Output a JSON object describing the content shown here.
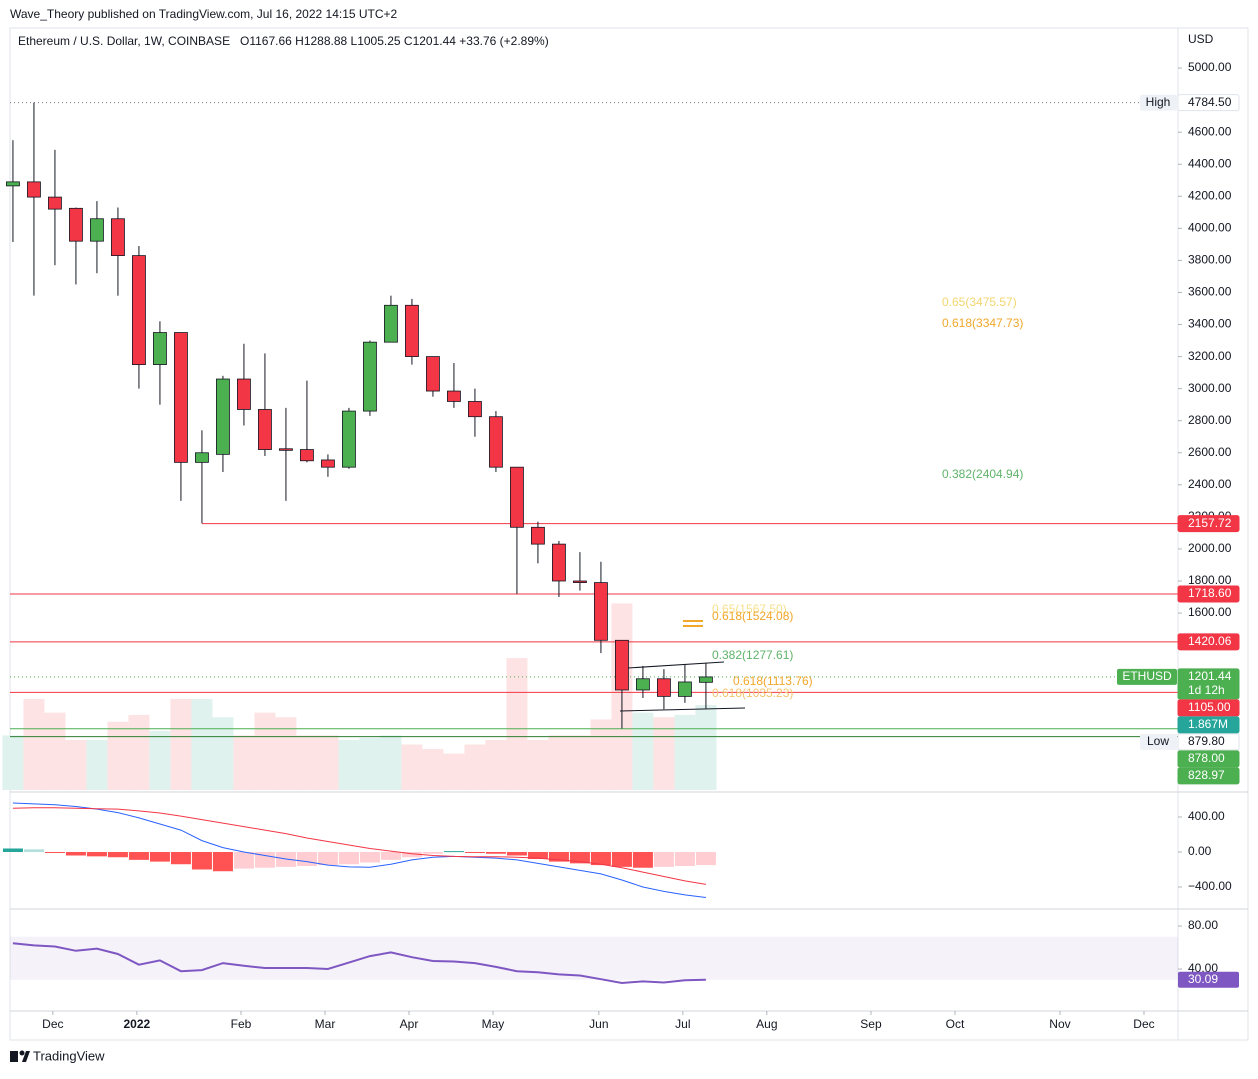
{
  "header": {
    "publisher": "Wave_Theory published on TradingView.com, Jul 16, 2022 14:15 UTC+2",
    "symbol": "Ethereum / U.S. Dollar, 1W, COINBASE",
    "ohlc": "O1167.66  H1288.88  L1005.25  C1201.44  +33.76 (+2.89%)"
  },
  "chart_data": {
    "type": "candlestick",
    "unit": "USD",
    "up_color": "#4caf50",
    "down_color": "#f23645",
    "open": [
      4265,
      4290,
      4195,
      4125,
      3920,
      4060,
      3830,
      3150,
      3350,
      2540,
      2590,
      3060,
      2870,
      2625,
      2620,
      2555,
      2510,
      2860,
      3290,
      3520,
      3200,
      2985,
      2920,
      2825,
      2510,
      2135,
      2030,
      1800,
      1790,
      1430,
      1120,
      1190,
      1080,
      1167.66
    ],
    "high": [
      4550,
      4784.5,
      4490,
      4130,
      4170,
      4130,
      3890,
      3420,
      3350,
      2740,
      3080,
      3280,
      3220,
      2880,
      3050,
      2590,
      2880,
      3300,
      3580,
      3560,
      3200,
      3160,
      3000,
      2860,
      2510,
      2170,
      2050,
      1980,
      1920,
      1430,
      1270,
      1250,
      1280,
      1288.88
    ],
    "low": [
      3915,
      3580,
      3770,
      3650,
      3720,
      3580,
      3000,
      2900,
      2300,
      2160,
      2480,
      2770,
      2580,
      2300,
      2540,
      2450,
      2500,
      2830,
      3290,
      3150,
      2950,
      2880,
      2700,
      2480,
      1720,
      1910,
      1700,
      1740,
      1350,
      880,
      1070,
      1000,
      1040,
      1005.25
    ],
    "close": [
      4290,
      4195,
      4120,
      3920,
      4060,
      3830,
      3150,
      3350,
      2540,
      2600,
      3060,
      2870,
      2620,
      2615,
      2550,
      2510,
      2860,
      3290,
      3520,
      3200,
      2985,
      2920,
      2825,
      2510,
      2135,
      2030,
      1800,
      1790,
      1430,
      1120,
      1190,
      1080,
      1170,
      1201.44
    ],
    "volume": [
      1.2,
      2.0,
      1.7,
      1.1,
      1.1,
      1.5,
      1.65,
      1.3,
      2.0,
      2.0,
      1.6,
      1.2,
      1.7,
      1.6,
      1.2,
      1.2,
      1.1,
      1.15,
      1.2,
      1.0,
      0.9,
      0.8,
      1.0,
      1.1,
      2.9,
      1.1,
      1.2,
      1.2,
      1.55,
      4.1,
      1.7,
      1.6,
      1.65,
      1.867
    ],
    "volume_label": "1.867M",
    "volume_up_color": "#dff2ee",
    "volume_down_color": "#fde3e4",
    "ylim": [
      496,
      5250
    ],
    "yticks": [
      {
        "value": 1600,
        "label": "1600.00"
      },
      {
        "value": 1800,
        "label": "1800.00"
      },
      {
        "value": 2000,
        "label": "2000.00"
      },
      {
        "value": 2200,
        "label": "2200.00"
      },
      {
        "value": 2400,
        "label": "2400.00"
      },
      {
        "value": 2600,
        "label": "2600.00"
      },
      {
        "value": 2800,
        "label": "2800.00"
      },
      {
        "value": 3000,
        "label": "3000.00"
      },
      {
        "value": 3200,
        "label": "3200.00"
      },
      {
        "value": 3400,
        "label": "3400.00"
      },
      {
        "value": 3600,
        "label": "3600.00"
      },
      {
        "value": 3800,
        "label": "3800.00"
      },
      {
        "value": 4000,
        "label": "4000.00"
      },
      {
        "value": 4200,
        "label": "4200.00"
      },
      {
        "value": 4400,
        "label": "4400.00"
      },
      {
        "value": 4600,
        "label": "4600.00"
      },
      {
        "value": 5000,
        "label": "5000.00"
      }
    ],
    "xlim": [
      -0.14,
      55.48
    ],
    "xticks": [
      {
        "value": 1.9,
        "label": "Dec"
      },
      {
        "value": 5.9,
        "label": "2022"
      },
      {
        "value": 10.86,
        "label": "Feb"
      },
      {
        "value": 14.86,
        "label": "Mar"
      },
      {
        "value": 18.86,
        "label": "Apr"
      },
      {
        "value": 22.86,
        "label": "May"
      },
      {
        "value": 27.9,
        "label": "Jun"
      },
      {
        "value": 31.9,
        "label": "Jul"
      },
      {
        "value": 35.9,
        "label": "Aug"
      },
      {
        "value": 40.86,
        "label": "Sep"
      },
      {
        "value": 44.86,
        "label": "Oct"
      },
      {
        "value": 49.86,
        "label": "Nov"
      },
      {
        "value": 53.86,
        "label": "Dec"
      }
    ],
    "symbol_tag": "ETHUSD",
    "countdown": "1d 12h",
    "levels": [
      {
        "value": 4784.5,
        "label": "4784.50",
        "name": "High",
        "color": "#787b86",
        "tag_color": "#ffffff",
        "text_color": "#131722",
        "line": "dotted"
      },
      {
        "value": 2157.72,
        "label": "2157.72",
        "color": "#f23645",
        "tag_color": "#f23645",
        "text_color": "#ffffff",
        "line": "solid",
        "from": 9
      },
      {
        "value": 1718.6,
        "label": "1718.60",
        "color": "#f23645",
        "tag_color": "#f23645",
        "text_color": "#ffffff",
        "line": "solid"
      },
      {
        "value": 1420.06,
        "label": "1420.06",
        "color": "#f23645",
        "tag_color": "#f23645",
        "text_color": "#ffffff",
        "line": "solid"
      },
      {
        "value": 1105,
        "label": "1105.00",
        "color": "#f23645",
        "tag_color": "#f23645",
        "text_color": "#ffffff",
        "line": "solid"
      },
      {
        "value": 879.8,
        "label": "879.80",
        "name": "Low",
        "color": "#787b86",
        "tag_color": "#ffffff",
        "text_color": "#131722",
        "line": "none"
      },
      {
        "value": 878,
        "label": "878.00",
        "color": "#4caf50",
        "tag_color": "#4caf50",
        "text_color": "#ffffff",
        "line": "solid"
      },
      {
        "value": 828.97,
        "label": "828.97",
        "color": "#2e7d32",
        "tag_color": "#4caf50",
        "text_color": "#ffffff",
        "line": "solid"
      }
    ],
    "annotations": [
      {
        "text": "0.65(3475.57)",
        "color": "#f3d66f"
      },
      {
        "text": "0.618(3347.73)",
        "color": "#f0a72a"
      },
      {
        "text": "0.382(2404.94)",
        "color": "#5fb36a"
      },
      {
        "text": "0.65(1567.50)",
        "color": "#f6e08c"
      },
      {
        "text": "0.618(1524.08)",
        "color": "#f0a72a"
      },
      {
        "text": "0.382(1277.61)",
        "color": "#5fb36a"
      },
      {
        "text": "0.618(1113.76)",
        "color": "#f0a72a"
      },
      {
        "text": "0.618(1035.23)",
        "color": "#f3c46f"
      }
    ],
    "macd": {
      "ylim": [
        -640,
        674
      ],
      "yticks": [
        {
          "value": 400,
          "label": "400.00"
        },
        {
          "value": 0,
          "label": "0.00"
        },
        {
          "value": -400,
          "label": "−400.00"
        }
      ],
      "macd_color": "#2962ff",
      "signal_color": "#f23645",
      "macd": [
        560,
        550,
        540,
        520,
        490,
        450,
        390,
        320,
        250,
        130,
        50,
        0,
        -40,
        -80,
        -110,
        -150,
        -170,
        -175,
        -140,
        -90,
        -60,
        -50,
        -60,
        -70,
        -90,
        -130,
        -170,
        -210,
        -250,
        -320,
        -400,
        -450,
        -490,
        -520
      ],
      "signal": [
        500,
        505,
        505,
        500,
        495,
        490,
        470,
        445,
        410,
        370,
        330,
        290,
        250,
        210,
        160,
        120,
        80,
        40,
        10,
        -20,
        -40,
        -50,
        -55,
        -55,
        -60,
        -70,
        -90,
        -110,
        -140,
        -180,
        -230,
        -280,
        -330,
        -370
      ],
      "hist": [
        40,
        30,
        -10,
        -40,
        -50,
        -60,
        -90,
        -110,
        -140,
        -200,
        -220,
        -190,
        -180,
        -170,
        -160,
        -150,
        -140,
        -120,
        -90,
        -60,
        -20,
        10,
        -10,
        -20,
        -40,
        -80,
        -110,
        -130,
        -150,
        -170,
        -180,
        -170,
        -160,
        -150
      ],
      "hist_colors": {
        "up_strong": "#26a69a",
        "up_weak": "#b2dfdb",
        "down_strong": "#ff5252",
        "down_weak": "#ffcdd2"
      }
    },
    "rsi": {
      "ylim": [
        1.9,
        94.9
      ],
      "yticks": [
        {
          "value": 80,
          "label": "80.00"
        },
        {
          "value": 40,
          "label": "40.00"
        }
      ],
      "band": [
        30,
        70
      ],
      "color": "#7e57c2",
      "values": [
        64,
        62,
        61,
        57,
        59,
        54,
        44,
        48,
        38,
        39,
        45.5,
        43,
        41,
        41,
        41,
        40,
        46,
        52,
        55.5,
        51,
        47.5,
        47,
        45.5,
        42,
        38,
        37,
        35,
        34,
        30.5,
        27,
        28.5,
        27.5,
        29.5,
        30.09
      ]
    }
  },
  "footer": {
    "brand": "TradingView"
  }
}
